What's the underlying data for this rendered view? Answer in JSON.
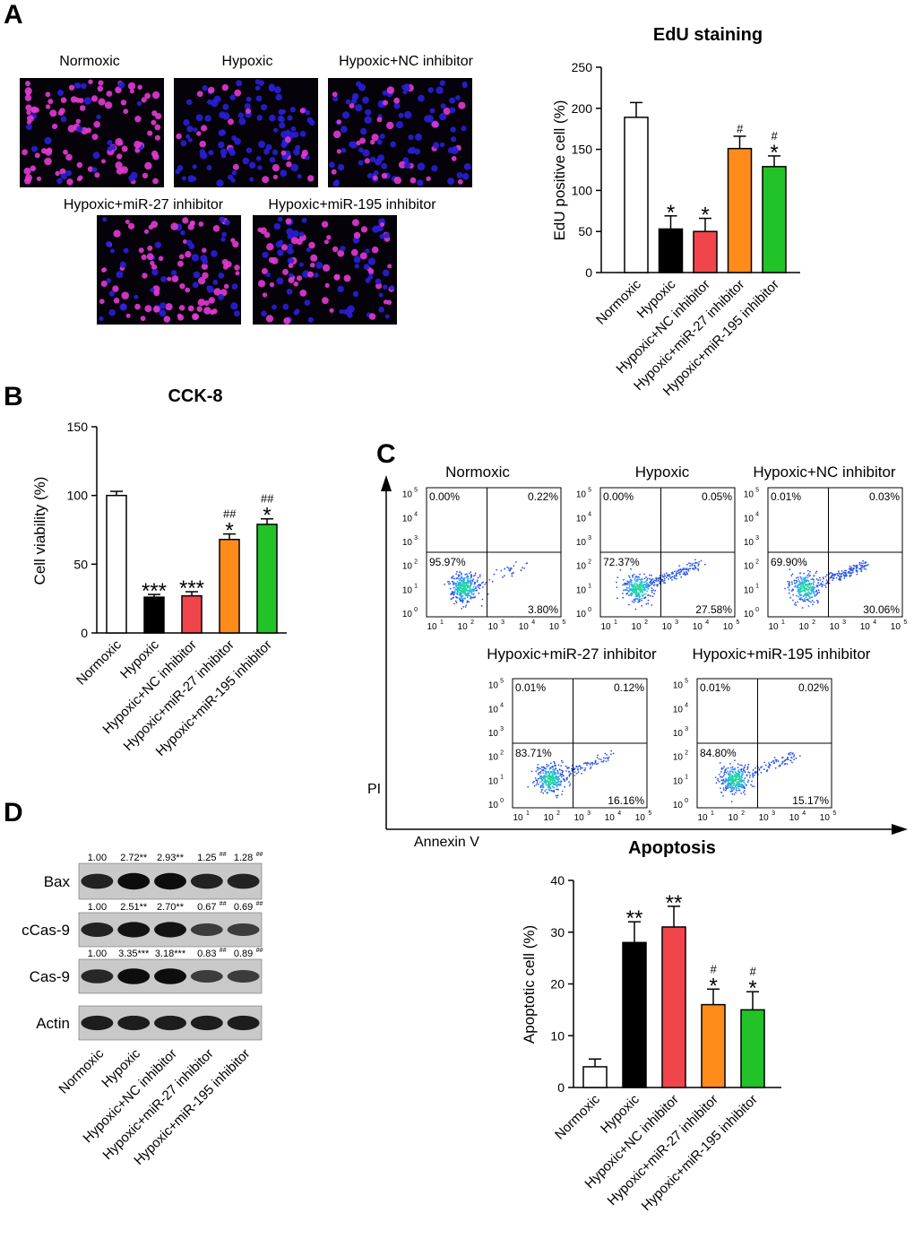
{
  "panel_labels": {
    "a": "A",
    "b": "B",
    "c": "C",
    "d": "D"
  },
  "groups": [
    "Normoxic",
    "Hypoxic",
    "Hypoxic+NC inhibitor",
    "Hypoxic+miR-27 inhibitor",
    "Hypoxic+miR-195 inhibitor"
  ],
  "colors": {
    "normoxic": "#ffffff",
    "hypoxic": "#000000",
    "nc": "#f0454b",
    "mir27": "#ff8c1a",
    "mir195": "#22c229",
    "nuclei_blue": "#2b1fd6",
    "nuclei_pink": "#e23bd0"
  },
  "chart_data": [
    {
      "id": "edu",
      "type": "bar",
      "title": "EdU staining",
      "ylabel": "EdU positive cell (%)",
      "ylim": [
        0,
        250
      ],
      "yticks": [
        "0",
        "50",
        "100",
        "150",
        "200",
        "250"
      ],
      "categories": [
        "Normoxic",
        "Hypoxic",
        "Hypoxic+NC inhibitor",
        "Hypoxic+miR-27 inhibitor",
        "Hypoxic+miR-195 inhibitor"
      ],
      "values": [
        189,
        53,
        50,
        151,
        129
      ],
      "errors": [
        18,
        16,
        16,
        15,
        13
      ],
      "annotations": [
        "",
        "*",
        "*",
        "#",
        "#\n*"
      ]
    },
    {
      "id": "cck8",
      "type": "bar",
      "title": "CCK-8",
      "ylabel": "Cell viability (%)",
      "ylim": [
        0,
        150
      ],
      "yticks": [
        "0",
        "50",
        "100",
        "150"
      ],
      "categories": [
        "Normoxic",
        "Hypoxic",
        "Hypoxic+NC inhibitor",
        "Hypoxic+miR-27 inhibitor",
        "Hypoxic+miR-195 inhibitor"
      ],
      "values": [
        100,
        26,
        27,
        68,
        79
      ],
      "errors": [
        3,
        2,
        3,
        4,
        4
      ],
      "annotations": [
        "",
        "***",
        "***",
        "##\n*",
        "##\n*"
      ]
    },
    {
      "id": "apoptosis",
      "type": "bar",
      "title": "Apoptosis",
      "ylabel": "Apoptotic cell (%)",
      "ylim": [
        0,
        40
      ],
      "yticks": [
        "0",
        "10",
        "20",
        "30",
        "40"
      ],
      "categories": [
        "Normoxic",
        "Hypoxic",
        "Hypoxic+NC inhibitor",
        "Hypoxic+miR-27 inhibitor",
        "Hypoxic+miR-195 inhibitor"
      ],
      "values": [
        4,
        28,
        31,
        16,
        15
      ],
      "errors": [
        1.5,
        4,
        4,
        3,
        3.5
      ],
      "annotations": [
        "",
        "**",
        "**",
        "#\n*",
        "#\n*"
      ]
    }
  ],
  "flow": {
    "x_axis": "Annexin V",
    "y_axis": "PI",
    "axis_ticks": [
      "10",
      "10",
      "10",
      "10",
      "10"
    ],
    "tick_exps": [
      "0",
      "1",
      "2",
      "3",
      "4",
      "5"
    ],
    "plots": [
      {
        "title": "Normoxic",
        "ul": "0.00%",
        "ur": "0.22%",
        "ll": "95.97%",
        "lr": "3.80%",
        "shift": 0.1
      },
      {
        "title": "Hypoxic",
        "ul": "0.00%",
        "ur": "0.05%",
        "ll": "72.37%",
        "lr": "27.58%",
        "shift": 0.6
      },
      {
        "title": "Hypoxic+NC inhibitor",
        "ul": "0.01%",
        "ur": "0.03%",
        "ll": "69.90%",
        "lr": "30.06%",
        "shift": 0.65
      },
      {
        "title": "Hypoxic+miR-27 inhibitor",
        "ul": "0.01%",
        "ur": "0.12%",
        "ll": "83.71%",
        "lr": "16.16%",
        "shift": 0.35
      },
      {
        "title": "Hypoxic+miR-195 inhibitor",
        "ul": "0.01%",
        "ur": "0.02%",
        "ll": "84.80%",
        "lr": "15.17%",
        "shift": 0.3
      }
    ]
  },
  "micrographs": [
    {
      "title": "Normoxic",
      "pink_fraction": 0.75
    },
    {
      "title": "Hypoxic",
      "pink_fraction": 0.2
    },
    {
      "title": "Hypoxic+NC inhibitor",
      "pink_fraction": 0.25
    },
    {
      "title": "Hypoxic+miR-27 inhibitor",
      "pink_fraction": 0.6
    },
    {
      "title": "Hypoxic+miR-195 inhibitor",
      "pink_fraction": 0.5
    }
  ],
  "western": {
    "rows": [
      {
        "name": "Bax",
        "values": [
          "1.00",
          "2.72**",
          "2.93**",
          "1.25",
          "1.28"
        ],
        "sups": [
          "",
          "",
          "",
          "##",
          "##"
        ],
        "intensity": [
          0.8,
          1.0,
          1.0,
          0.8,
          0.8
        ]
      },
      {
        "name": "cCas-9",
        "values": [
          "1.00",
          "2.51**",
          "2.70**",
          "0.67",
          "0.69"
        ],
        "sups": [
          "",
          "",
          "",
          "##",
          "##"
        ],
        "intensity": [
          0.8,
          0.95,
          0.95,
          0.55,
          0.55
        ]
      },
      {
        "name": "Cas-9",
        "values": [
          "1.00",
          "3.35***",
          "3.18***",
          "0.83",
          "0.89"
        ],
        "sups": [
          "",
          "",
          "",
          "##",
          "##"
        ],
        "intensity": [
          0.75,
          1.0,
          1.0,
          0.55,
          0.55
        ]
      },
      {
        "name": "Actin",
        "values": [],
        "sups": [],
        "intensity": [
          0.85,
          0.85,
          0.85,
          0.85,
          0.85
        ]
      }
    ]
  }
}
